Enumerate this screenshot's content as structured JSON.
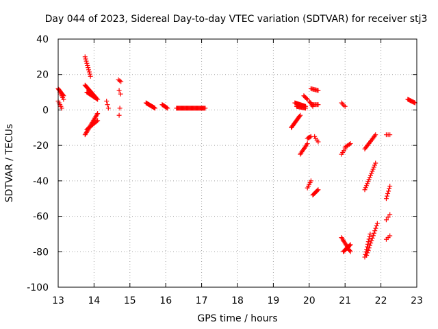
{
  "chart_data": {
    "type": "scatter",
    "title": "Day 044 of 2023, Sidereal Day-to-day VTEC variation (SDTVAR) for receiver stj3",
    "xlabel": "GPS time / hours",
    "ylabel": "SDTVAR / TECUs",
    "xlim": [
      13,
      23
    ],
    "ylim": [
      -100,
      40
    ],
    "xticks": [
      13,
      14,
      15,
      16,
      17,
      18,
      19,
      20,
      21,
      22,
      23
    ],
    "yticks": [
      -100,
      -80,
      -60,
      -40,
      -20,
      0,
      20,
      40
    ],
    "grid": true,
    "marker": "+",
    "color": "#ff0000",
    "segments": [
      {
        "x0": 13.0,
        "x1": 13.15,
        "y0": 12,
        "y1": 8,
        "n": 10
      },
      {
        "x0": 13.0,
        "x1": 13.1,
        "y0": 5,
        "y1": 1,
        "n": 5
      },
      {
        "x0": 13.05,
        "x1": 13.15,
        "y0": 10,
        "y1": 6,
        "n": 5
      },
      {
        "x0": 13.75,
        "x1": 13.9,
        "y0": 30,
        "y1": 19,
        "n": 10
      },
      {
        "x0": 13.75,
        "x1": 14.05,
        "y0": 14,
        "y1": 7,
        "n": 18
      },
      {
        "x0": 13.8,
        "x1": 14.1,
        "y0": 10,
        "y1": 6,
        "n": 14
      },
      {
        "x0": 13.75,
        "x1": 14.1,
        "y0": -14,
        "y1": -2,
        "n": 20
      },
      {
        "x0": 13.8,
        "x1": 14.1,
        "y0": -11,
        "y1": -6,
        "n": 12
      },
      {
        "x0": 14.35,
        "x1": 14.4,
        "y0": 5,
        "y1": 1,
        "n": 3
      },
      {
        "x0": 14.68,
        "x1": 14.75,
        "y0": 17,
        "y1": 16,
        "n": 3
      },
      {
        "x0": 14.7,
        "x1": 14.74,
        "y0": 11,
        "y1": 9,
        "n": 2
      },
      {
        "x0": 14.72,
        "x1": 14.72,
        "y0": 1,
        "y1": 1,
        "n": 1
      },
      {
        "x0": 14.7,
        "x1": 14.7,
        "y0": -3,
        "y1": -3,
        "n": 1
      },
      {
        "x0": 15.45,
        "x1": 15.7,
        "y0": 4,
        "y1": 1,
        "n": 14
      },
      {
        "x0": 15.9,
        "x1": 16.05,
        "y0": 3,
        "y1": 1,
        "n": 8
      },
      {
        "x0": 16.3,
        "x1": 17.1,
        "y0": 1,
        "y1": 1,
        "n": 40
      },
      {
        "x0": 19.5,
        "x1": 19.75,
        "y0": -10,
        "y1": -3,
        "n": 14
      },
      {
        "x0": 19.6,
        "x1": 19.9,
        "y0": 4,
        "y1": 2,
        "n": 16
      },
      {
        "x0": 19.65,
        "x1": 19.9,
        "y0": 2,
        "y1": 1,
        "n": 12
      },
      {
        "x0": 19.75,
        "x1": 19.95,
        "y0": -25,
        "y1": -19,
        "n": 10
      },
      {
        "x0": 19.85,
        "x1": 19.95,
        "y0": 8,
        "y1": 6,
        "n": 5
      },
      {
        "x0": 19.95,
        "x1": 20.05,
        "y0": -16,
        "y1": -15,
        "n": 5
      },
      {
        "x0": 19.95,
        "x1": 20.05,
        "y0": -44,
        "y1": -40,
        "n": 5
      },
      {
        "x0": 20.0,
        "x1": 20.1,
        "y0": 5,
        "y1": 2,
        "n": 5
      },
      {
        "x0": 20.05,
        "x1": 20.25,
        "y0": 12,
        "y1": 11,
        "n": 8
      },
      {
        "x0": 20.1,
        "x1": 20.25,
        "y0": 3,
        "y1": 3,
        "n": 6
      },
      {
        "x0": 20.1,
        "x1": 20.25,
        "y0": -48,
        "y1": -45,
        "n": 8
      },
      {
        "x0": 20.15,
        "x1": 20.25,
        "y0": -15,
        "y1": -18,
        "n": 4
      },
      {
        "x0": 20.9,
        "x1": 21.0,
        "y0": -25,
        "y1": -22,
        "n": 4
      },
      {
        "x0": 20.9,
        "x1": 21.0,
        "y0": 4,
        "y1": 2,
        "n": 4
      },
      {
        "x0": 20.9,
        "x1": 21.15,
        "y0": -72,
        "y1": -80,
        "n": 12
      },
      {
        "x0": 20.95,
        "x1": 21.15,
        "y0": -80,
        "y1": -76,
        "n": 10
      },
      {
        "x0": 21.0,
        "x1": 21.15,
        "y0": -21,
        "y1": -19,
        "n": 6
      },
      {
        "x0": 21.55,
        "x1": 21.85,
        "y0": -22,
        "y1": -14,
        "n": 14
      },
      {
        "x0": 21.55,
        "x1": 21.85,
        "y0": -45,
        "y1": -30,
        "n": 14
      },
      {
        "x0": 21.55,
        "x1": 21.7,
        "y0": -83,
        "y1": -70,
        "n": 10
      },
      {
        "x0": 21.6,
        "x1": 21.9,
        "y0": -82,
        "y1": -64,
        "n": 14
      },
      {
        "x0": 22.15,
        "x1": 22.25,
        "y0": -14,
        "y1": -14,
        "n": 3
      },
      {
        "x0": 22.15,
        "x1": 22.25,
        "y0": -50,
        "y1": -43,
        "n": 6
      },
      {
        "x0": 22.15,
        "x1": 22.25,
        "y0": -62,
        "y1": -59,
        "n": 3
      },
      {
        "x0": 22.15,
        "x1": 22.25,
        "y0": -73,
        "y1": -71,
        "n": 3
      },
      {
        "x0": 22.75,
        "x1": 22.95,
        "y0": 6,
        "y1": 4,
        "n": 10
      }
    ]
  }
}
